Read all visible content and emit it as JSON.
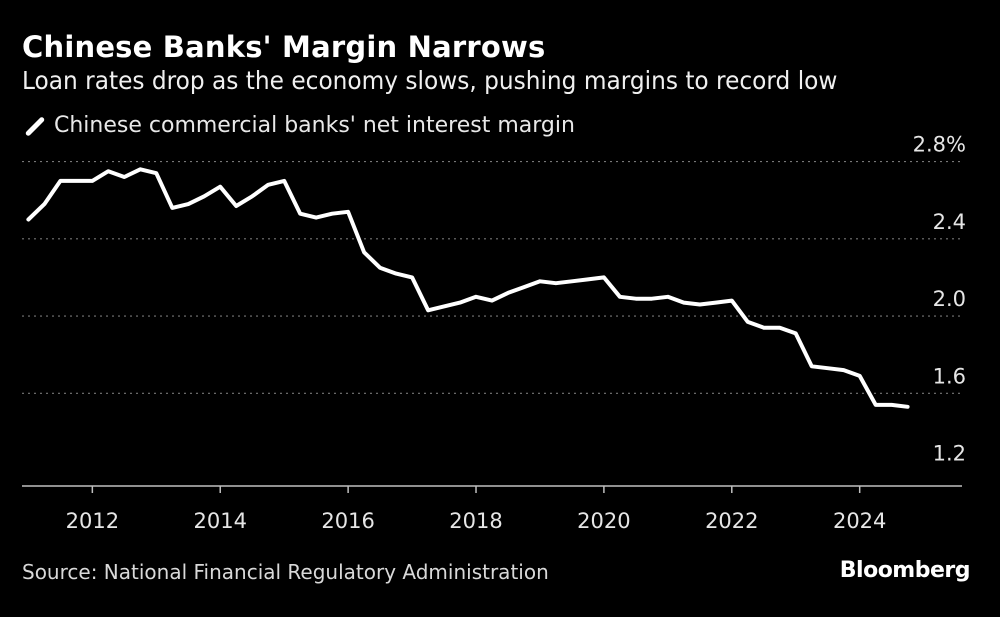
{
  "header": {
    "title": "Chinese Banks' Margin Narrows",
    "subtitle": "Loan rates drop as the economy slows, pushing margins to record low"
  },
  "legend": {
    "label": "Chinese commercial banks' net interest margin",
    "icon": "line-swatch-icon"
  },
  "footer": {
    "source": "Source: National Financial Regulatory Administration",
    "brand": "Bloomberg"
  },
  "colors": {
    "background": "#000000",
    "line": "#ffffff",
    "grid": "#777777",
    "text": "#ffffff"
  },
  "chart_data": {
    "type": "line",
    "title": "Chinese Banks' Margin Narrows",
    "xlabel": "",
    "ylabel": "",
    "xlim": [
      2010.9,
      2025.6
    ],
    "ylim": [
      1.12,
      2.86
    ],
    "yticks": [
      2.8,
      2.4,
      2.0,
      1.6,
      1.2
    ],
    "ytick_labels": [
      "2.8%",
      "2.4",
      "2.0",
      "1.6",
      "1.2"
    ],
    "xticks": [
      2012,
      2014,
      2016,
      2018,
      2020,
      2022,
      2024
    ],
    "xtick_labels": [
      "2012",
      "2014",
      "2016",
      "2018",
      "2020",
      "2022",
      "2024"
    ],
    "grid": "horizontal-dotted",
    "series": [
      {
        "name": "Chinese commercial banks' net interest margin",
        "x": [
          2011.0,
          2011.25,
          2011.5,
          2011.75,
          2012.0,
          2012.25,
          2012.5,
          2012.75,
          2013.0,
          2013.25,
          2013.5,
          2013.75,
          2014.0,
          2014.25,
          2014.5,
          2014.75,
          2015.0,
          2015.25,
          2015.5,
          2015.75,
          2016.0,
          2016.25,
          2016.5,
          2016.75,
          2017.0,
          2017.25,
          2017.5,
          2017.75,
          2018.0,
          2018.25,
          2018.5,
          2018.75,
          2019.0,
          2019.25,
          2019.5,
          2019.75,
          2020.0,
          2020.25,
          2020.5,
          2020.75,
          2021.0,
          2021.25,
          2021.5,
          2021.75,
          2022.0,
          2022.25,
          2022.5,
          2022.75,
          2023.0,
          2023.25,
          2023.5,
          2023.75,
          2024.0,
          2024.25,
          2024.5,
          2024.75
        ],
        "values": [
          2.5,
          2.58,
          2.7,
          2.7,
          2.7,
          2.75,
          2.72,
          2.76,
          2.74,
          2.56,
          2.58,
          2.62,
          2.67,
          2.57,
          2.62,
          2.68,
          2.7,
          2.53,
          2.51,
          2.53,
          2.54,
          2.33,
          2.25,
          2.22,
          2.2,
          2.03,
          2.05,
          2.07,
          2.1,
          2.08,
          2.12,
          2.15,
          2.18,
          2.17,
          2.18,
          2.19,
          2.2,
          2.1,
          2.09,
          2.09,
          2.1,
          2.07,
          2.06,
          2.07,
          2.08,
          1.97,
          1.94,
          1.94,
          1.91,
          1.74,
          1.73,
          1.72,
          1.69,
          1.54,
          1.54,
          1.53
        ]
      }
    ]
  }
}
